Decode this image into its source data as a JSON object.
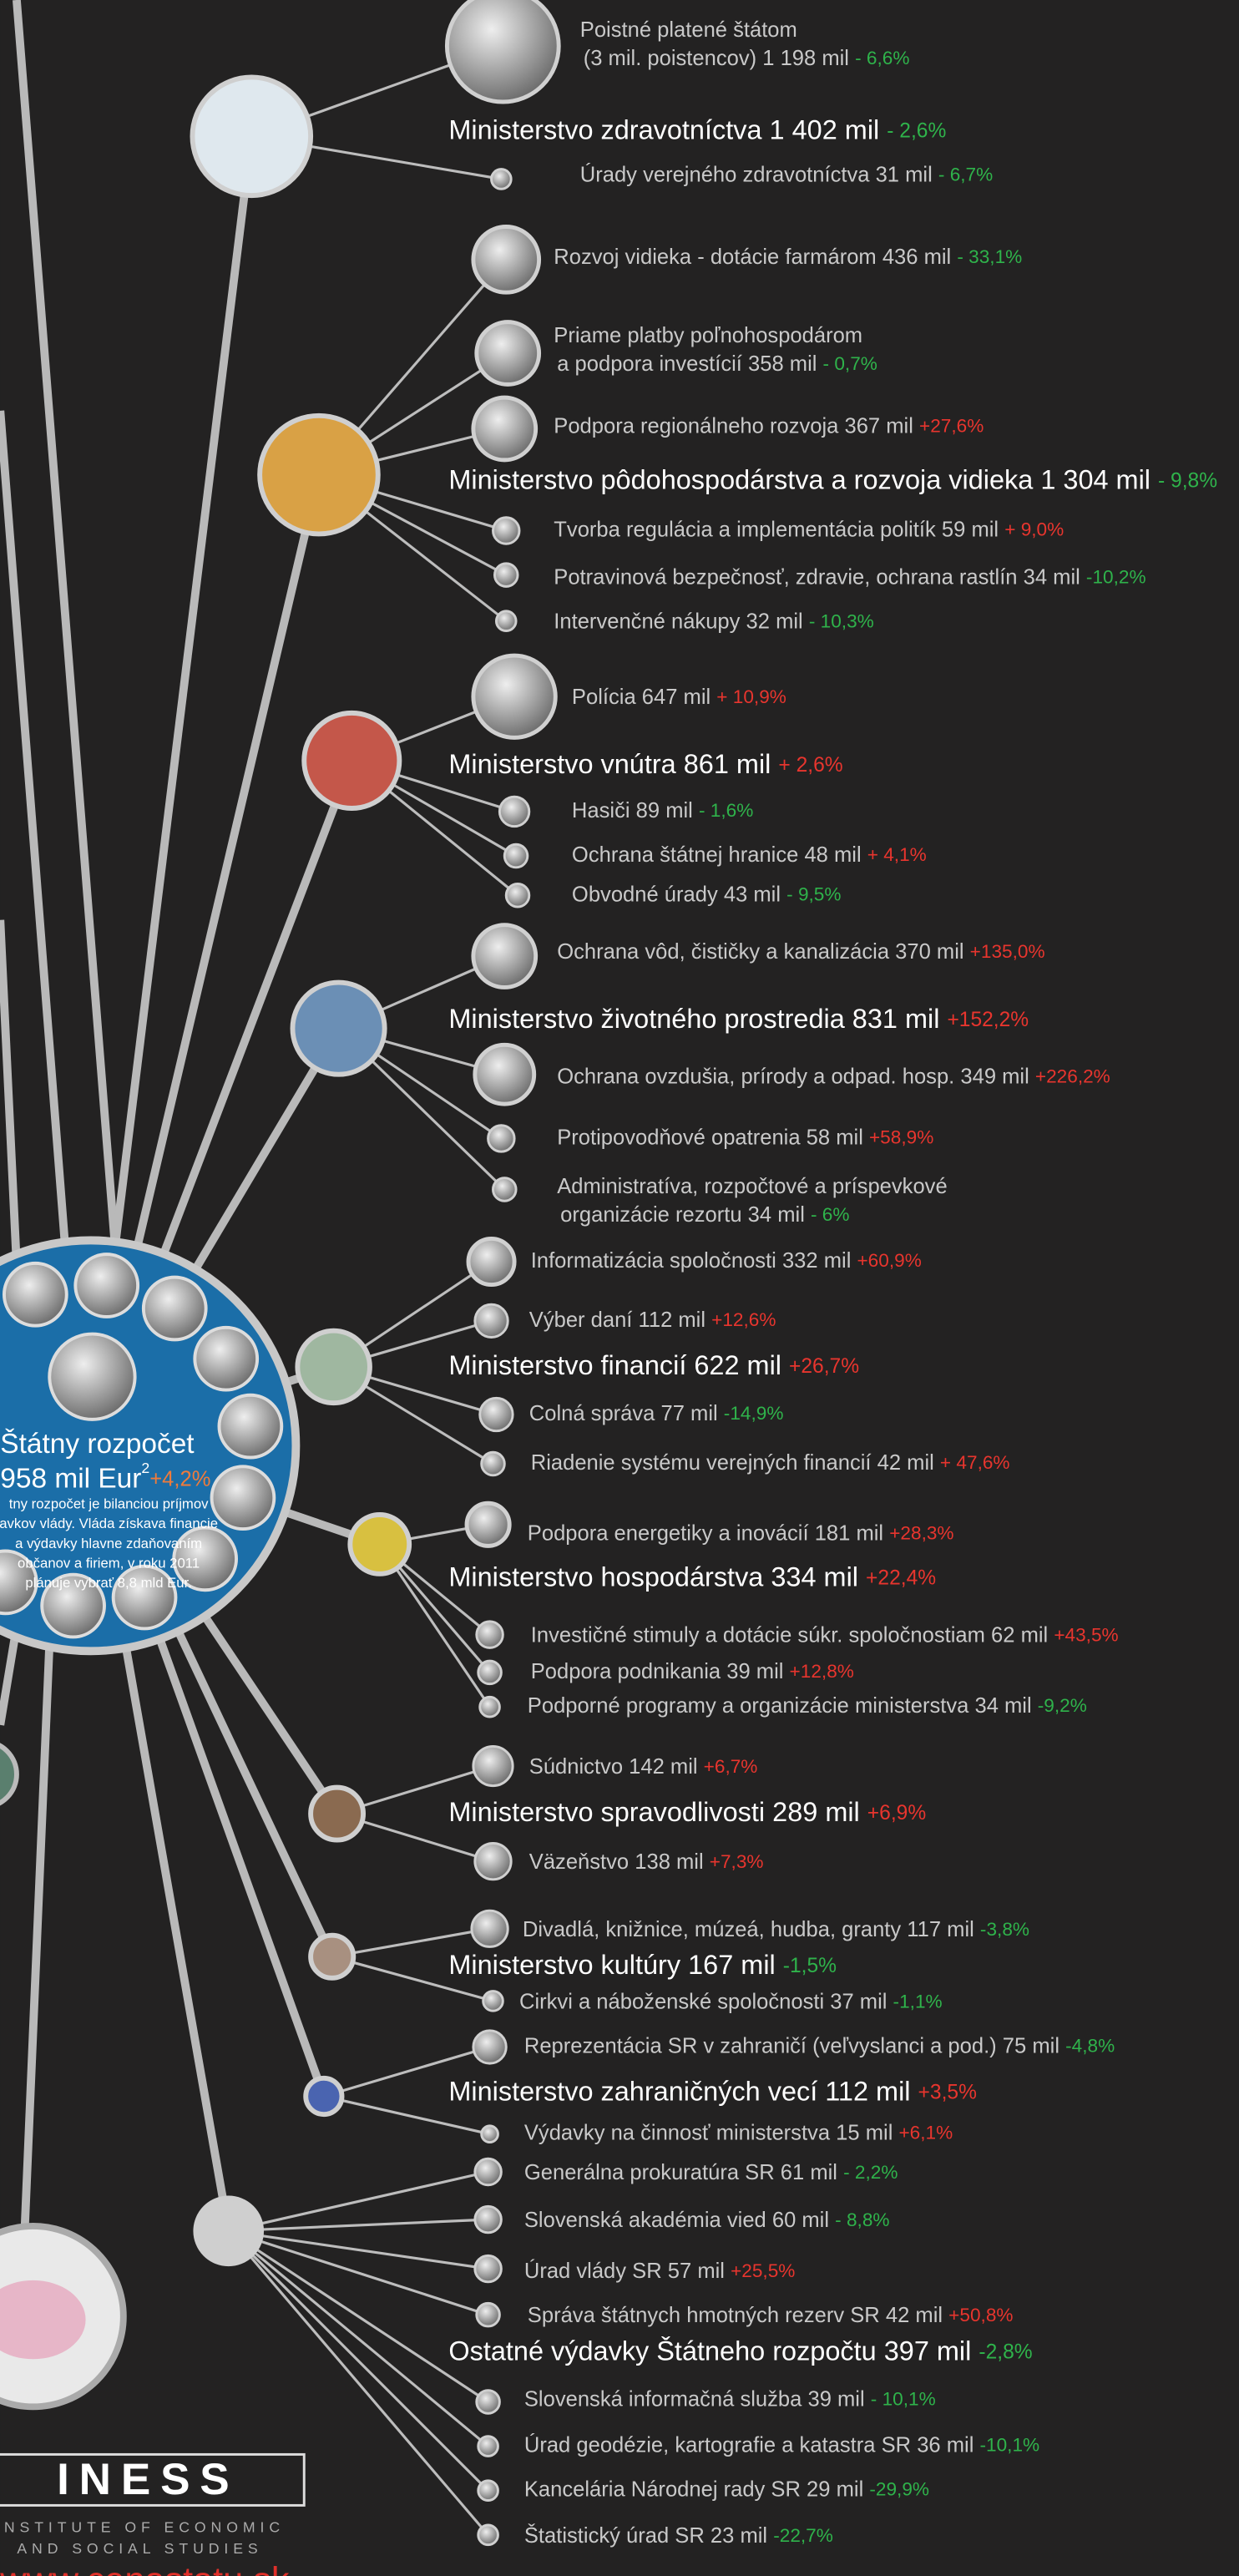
{
  "budget": {
    "title": "Štátny rozpočet",
    "amount": "958 mil Eur",
    "note_mark": "2",
    "change": "+4,2%",
    "description": [
      "tny rozpočet je bilanciou príjmov",
      "avkov vlády. Vláda získava financie",
      "a výdavky hlavne zdaňovaním",
      "občanov a firiem, v roku 2011",
      "plánuje vybrať 8,8 mld Eur."
    ]
  },
  "ministries": [
    {
      "name": "Ministerstvo zdravotníctva",
      "amount": "1 402 mil",
      "change": "- 2,6%",
      "items": [
        {
          "label": [
            "Poistné platené štátom",
            "(3 mil. poistencov)"
          ],
          "amount": "1 198 mil",
          "change": "- 6,6%"
        },
        {
          "label": "Úrady verejného zdravotníctva",
          "amount": "31 mil",
          "change": "- 6,7%"
        }
      ]
    },
    {
      "name": "Ministerstvo pôdohospodárstva a rozvoja vidieka",
      "amount": "1 304 mil",
      "change": "- 9,8%",
      "items": [
        {
          "label": "Rozvoj vidieka - dotácie farmárom",
          "amount": "436 mil",
          "change": "- 33,1%"
        },
        {
          "label": [
            "Priame platby poľnohospodárom",
            "a podpora investícií"
          ],
          "amount": "358 mil",
          "change": "- 0,7%"
        },
        {
          "label": "Podpora regionálneho rozvoja",
          "amount": "367 mil",
          "change": "+27,6%"
        },
        {
          "label": "Tvorba regulácia a implementácia politík",
          "amount": "59 mil",
          "change": "+ 9,0%"
        },
        {
          "label": "Potravinová bezpečnosť, zdravie, ochrana rastlín",
          "amount": "34 mil",
          "change": "-10,2%"
        },
        {
          "label": "Intervenčné nákupy",
          "amount": "32 mil",
          "change": "- 10,3%"
        }
      ]
    },
    {
      "name": "Ministerstvo vnútra",
      "amount": "861 mil",
      "change": "+ 2,6%",
      "items": [
        {
          "label": "Polícia",
          "amount": "647 mil",
          "change": "+ 10,9%"
        },
        {
          "label": "Hasiči",
          "amount": "89 mil",
          "change": "- 1,6%"
        },
        {
          "label": "Ochrana štátnej hranice",
          "amount": "48 mil",
          "change": "+ 4,1%"
        },
        {
          "label": "Obvodné  úrady",
          "amount": "43 mil",
          "change": "- 9,5%"
        }
      ]
    },
    {
      "name": "Ministerstvo životného prostredia",
      "amount": "831 mil",
      "change": "+152,2%",
      "items": [
        {
          "label": "Ochrana vôd, čističky a kanalizácia",
          "amount": "370 mil",
          "change": "+135,0%"
        },
        {
          "label": "Ochrana ovzdušia, prírody a odpad. hosp.",
          "amount": "349 mil",
          "change": "+226,2%"
        },
        {
          "label": "Protipovodňové opatrenia",
          "amount": "58 mil",
          "change": "+58,9%"
        },
        {
          "label": [
            "Administratíva, rozpočtové a príspevkové",
            "organizácie rezortu"
          ],
          "amount": "34 mil",
          "change": "- 6%"
        }
      ]
    },
    {
      "name": "Ministerstvo financií",
      "amount": "622 mil",
      "change": "+26,7%",
      "items": [
        {
          "label": "Informatizácia spoločnosti",
          "amount": "332 mil",
          "change": "+60,9%"
        },
        {
          "label": "Výber daní",
          "amount": "112 mil",
          "change": "+12,6%"
        },
        {
          "label": "Colná správa",
          "amount": "77 mil",
          "change": "-14,9%"
        },
        {
          "label": "Riadenie systému verejných financií",
          "amount": "42 mil",
          "change": "+ 47,6%"
        }
      ]
    },
    {
      "name": "Ministerstvo hospodárstva",
      "amount": "334 mil",
      "change": "+22,4%",
      "items": [
        {
          "label": "Podpora energetiky a inovácií",
          "amount": "181 mil",
          "change": "+28,3%"
        },
        {
          "label": "Investičné stimuly a dotácie súkr. spoločnostiam",
          "amount": "62 mil",
          "change": "+43,5%"
        },
        {
          "label": "Podpora podnikania",
          "amount": "39 mil",
          "change": "+12,8%"
        },
        {
          "label": "Podporné programy a organizácie ministerstva",
          "amount": "34 mil",
          "change": "-9,2%"
        }
      ]
    },
    {
      "name": "Ministerstvo spravodlivosti",
      "amount": "289 mil",
      "change": "+6,9%",
      "items": [
        {
          "label": "Súdnictvo",
          "amount": "142 mil",
          "change": "+6,7%"
        },
        {
          "label": "Väzeňstvo",
          "amount": "138 mil",
          "change": "+7,3%"
        }
      ]
    },
    {
      "name": "Ministerstvo kultúry",
      "amount": "167 mil",
      "change": "-1,5%",
      "items": [
        {
          "label": "Divadlá, knižnice, múzeá, hudba, granty",
          "amount": "117 mil",
          "change": "-3,8%"
        },
        {
          "label": "Cirkvi a náboženské spoločnosti",
          "amount": "37 mil",
          "change": "-1,1%"
        }
      ]
    },
    {
      "name": "Ministerstvo zahraničných vecí",
      "amount": "112 mil",
      "change": "+3,5%",
      "items": [
        {
          "label": "Reprezentácia SR v zahraničí (veľvyslanci a pod.)",
          "amount": "75 mil",
          "change": "-4,8%"
        },
        {
          "label": "Výdavky na činnosť ministerstva",
          "amount": "15 mil",
          "change": "+6,1%"
        }
      ]
    },
    {
      "name": "Ostatné výdavky Štátneho rozpočtu",
      "amount": "397 mil",
      "change": "-2,8%",
      "items": [
        {
          "label": "Generálna prokuratúra SR",
          "amount": "61 mil",
          "change": "- 2,2%"
        },
        {
          "label": "Slovenská akadémia vied",
          "amount": "60 mil",
          "change": "- 8,8%"
        },
        {
          "label": "Úrad vlády SR",
          "amount": "57 mil",
          "change": "+25,5%"
        },
        {
          "label": "Správa štátnych hmotných rezerv SR",
          "amount": "42 mil",
          "change": "+50,8%"
        },
        {
          "label": "Slovenská  informačná  služba",
          "amount": "39 mil",
          "change": "- 10,1%"
        },
        {
          "label": "Úrad geodézie, kartografie a katastra SR",
          "amount": "36 mil",
          "change": "-10,1%"
        },
        {
          "label": "Kancelária Národnej rady SR",
          "amount": "29 mil",
          "change": "-29,9%"
        },
        {
          "label": "Štatistický úrad SR",
          "amount": "23 mil",
          "change": "-22,7%"
        }
      ]
    }
  ],
  "logo": {
    "name": "INESS",
    "line1": "INSTITUTE OF ECONOMIC",
    "line2": "AND SOCIAL STUDIES",
    "url": "www.cenastatu.sk"
  }
}
